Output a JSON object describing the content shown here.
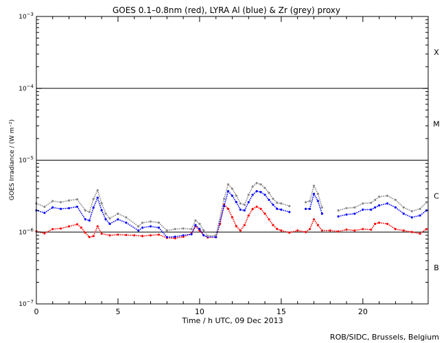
{
  "chart_data": {
    "type": "scatter",
    "title": "GOES 0.1–0.8nm (red), LYRA Al (blue) & Zr (grey) proxy",
    "xlabel": "Time / h UTC, 09 Dec 2013",
    "ylabel": "GOES Irradiance / (W m⁻²)",
    "xlim": [
      0,
      24
    ],
    "ylim": [
      1e-07,
      0.001
    ],
    "y_scale": "log",
    "grid": false,
    "x_ticks": [
      0,
      5,
      10,
      15,
      20
    ],
    "x_tick_labels": [
      "0",
      "5",
      "10",
      "15",
      "20"
    ],
    "y_ticks": [
      1e-07,
      1e-06,
      1e-05,
      0.0001,
      0.001
    ],
    "y_tick_labels": [
      {
        "base": "10",
        "exp": "−7"
      },
      {
        "base": "10",
        "exp": "−6"
      },
      {
        "base": "10",
        "exp": "−5"
      },
      {
        "base": "10",
        "exp": "−4"
      },
      {
        "base": "10",
        "exp": "−3"
      }
    ],
    "reference_lines": [
      1e-06,
      1e-05,
      0.0001
    ],
    "flare_classes": [
      {
        "label": "X",
        "level": 0.00032
      },
      {
        "label": "M",
        "level": 3.2e-05
      },
      {
        "label": "C",
        "level": 3.2e-06
      },
      {
        "label": "B",
        "level": 3.2e-07
      }
    ],
    "series": [
      {
        "name": "GOES 0.1–0.8nm",
        "color": "#ff0000",
        "x": [
          0,
          0.5,
          1,
          1.5,
          2,
          2.5,
          2.75,
          3,
          3.25,
          3.5,
          3.75,
          4,
          4.5,
          5,
          5.5,
          6,
          6.5,
          7,
          7.5,
          8,
          8.5,
          9,
          9.5,
          9.75,
          10,
          10.25,
          10.5,
          11,
          11.25,
          11.5,
          11.75,
          12,
          12.25,
          12.5,
          12.75,
          13,
          13.25,
          13.5,
          13.75,
          14,
          14.25,
          14.5,
          14.75,
          15,
          15.5,
          16,
          16.5,
          16.75,
          17,
          17.25,
          17.5,
          18,
          18.5,
          19,
          19.5,
          20,
          20.5,
          20.75,
          21,
          21.5,
          22,
          22.5,
          23,
          23.5,
          23.9
        ],
        "y": [
          1.02e-06,
          9.6e-07,
          1.1e-06,
          1.12e-06,
          1.2e-06,
          1.28e-06,
          1.15e-06,
          9.8e-07,
          8.5e-07,
          8.8e-07,
          1.2e-06,
          9.5e-07,
          9e-07,
          9.2e-07,
          9.1e-07,
          9e-07,
          8.8e-07,
          9e-07,
          9.2e-07,
          8.3e-07,
          8.2e-07,
          8.6e-07,
          9.5e-07,
          1.2e-06,
          1.05e-06,
          9e-07,
          8.4e-07,
          8.5e-07,
          1.3e-06,
          2.4e-06,
          2.1e-06,
          1.6e-06,
          1.2e-06,
          1.05e-06,
          1.25e-06,
          1.7e-06,
          2.1e-06,
          2.25e-06,
          2.1e-06,
          1.8e-06,
          1.5e-06,
          1.25e-06,
          1.1e-06,
          1.05e-06,
          9.8e-07,
          1.05e-06,
          1e-06,
          1.1e-06,
          1.5e-06,
          1.25e-06,
          1.05e-06,
          1.05e-06,
          1.02e-06,
          1.08e-06,
          1.05e-06,
          1.1e-06,
          1.08e-06,
          1.3e-06,
          1.35e-06,
          1.3e-06,
          1.1e-06,
          1.05e-06,
          1e-06,
          9.5e-07,
          1.1e-06
        ]
      },
      {
        "name": "LYRA Al",
        "color": "#0000ff",
        "x": [
          0,
          0.5,
          1,
          1.5,
          2,
          2.5,
          3,
          3.25,
          3.5,
          3.75,
          4,
          4.25,
          4.5,
          5,
          5.5,
          6.25,
          6.5,
          7,
          7.5,
          8,
          8.5,
          9,
          9.5,
          9.75,
          10,
          10.25,
          10.5,
          11,
          11.5,
          11.75,
          12,
          12.25,
          12.5,
          12.75,
          13,
          13.25,
          13.5,
          13.75,
          14,
          14.25,
          14.5,
          14.75,
          15,
          15.5,
          16.5,
          16.75,
          17,
          17.25,
          17.5,
          18.5,
          19,
          19.5,
          20,
          20.5,
          20.75,
          21,
          21.5,
          22,
          22.5,
          23,
          23.5,
          23.9
        ],
        "y": [
          2e-06,
          1.85e-06,
          2.2e-06,
          2.1e-06,
          2.15e-06,
          2.25e-06,
          1.5e-06,
          1.45e-06,
          2.2e-06,
          3e-06,
          2e-06,
          1.5e-06,
          1.3e-06,
          1.5e-06,
          1.35e-06,
          1.05e-06,
          1.15e-06,
          1.2e-06,
          1.15e-06,
          8.5e-07,
          8.6e-07,
          9e-07,
          9.3e-07,
          1.25e-06,
          1.1e-06,
          9e-07,
          8.6e-07,
          8.5e-07,
          2.3e-06,
          3.7e-06,
          3.2e-06,
          2.6e-06,
          2.05e-06,
          2e-06,
          2.6e-06,
          3.3e-06,
          3.7e-06,
          3.6e-06,
          3.3e-06,
          2.8e-06,
          2.4e-06,
          2.1e-06,
          2.05e-06,
          1.9e-06,
          2.1e-06,
          2.1e-06,
          3.4e-06,
          2.7e-06,
          1.8e-06,
          1.65e-06,
          1.75e-06,
          1.8e-06,
          2.05e-06,
          2.05e-06,
          2.2e-06,
          2.35e-06,
          2.5e-06,
          2.2e-06,
          1.8e-06,
          1.6e-06,
          1.7e-06,
          2e-06
        ]
      },
      {
        "name": "Zr",
        "color": "#888888",
        "x": [
          0,
          0.5,
          1,
          1.5,
          2,
          2.5,
          3,
          3.25,
          3.5,
          3.75,
          4,
          4.25,
          4.5,
          5,
          5.5,
          6.25,
          6.5,
          7,
          7.5,
          8,
          8.5,
          9,
          9.5,
          9.75,
          10,
          10.25,
          10.5,
          11,
          11.5,
          11.75,
          12,
          12.25,
          12.5,
          12.75,
          13,
          13.25,
          13.5,
          13.75,
          14,
          14.25,
          14.5,
          14.75,
          15,
          15.5,
          16.5,
          16.75,
          17,
          17.25,
          17.5,
          18.5,
          19,
          19.5,
          20,
          20.5,
          20.75,
          21,
          21.5,
          22,
          22.5,
          23,
          23.5,
          23.9
        ],
        "y": [
          2.5e-06,
          2.25e-06,
          2.7e-06,
          2.6e-06,
          2.75e-06,
          2.85e-06,
          2e-06,
          1.9e-06,
          2.9e-06,
          3.8e-06,
          2.5e-06,
          1.8e-06,
          1.55e-06,
          1.8e-06,
          1.6e-06,
          1.2e-06,
          1.35e-06,
          1.4e-06,
          1.35e-06,
          1.05e-06,
          1.1e-06,
          1.12e-06,
          1.1e-06,
          1.45e-06,
          1.3e-06,
          1.05e-06,
          8.8e-07,
          9e-07,
          2.9e-06,
          4.6e-06,
          4e-06,
          3.2e-06,
          2.5e-06,
          2.4e-06,
          3.3e-06,
          4.3e-06,
          4.8e-06,
          4.6e-06,
          4.1e-06,
          3.5e-06,
          2.9e-06,
          2.55e-06,
          2.5e-06,
          2.3e-06,
          2.6e-06,
          2.7e-06,
          4.4e-06,
          3.4e-06,
          2.2e-06,
          2e-06,
          2.15e-06,
          2.2e-06,
          2.5e-06,
          2.55e-06,
          2.8e-06,
          3.1e-06,
          3.2e-06,
          2.8e-06,
          2.2e-06,
          1.95e-06,
          2.1e-06,
          2.6e-06
        ]
      }
    ]
  },
  "credit": "ROB/SIDC, Brussels, Belgium",
  "colors": {
    "background": "#ffffff",
    "axis": "#000000"
  }
}
